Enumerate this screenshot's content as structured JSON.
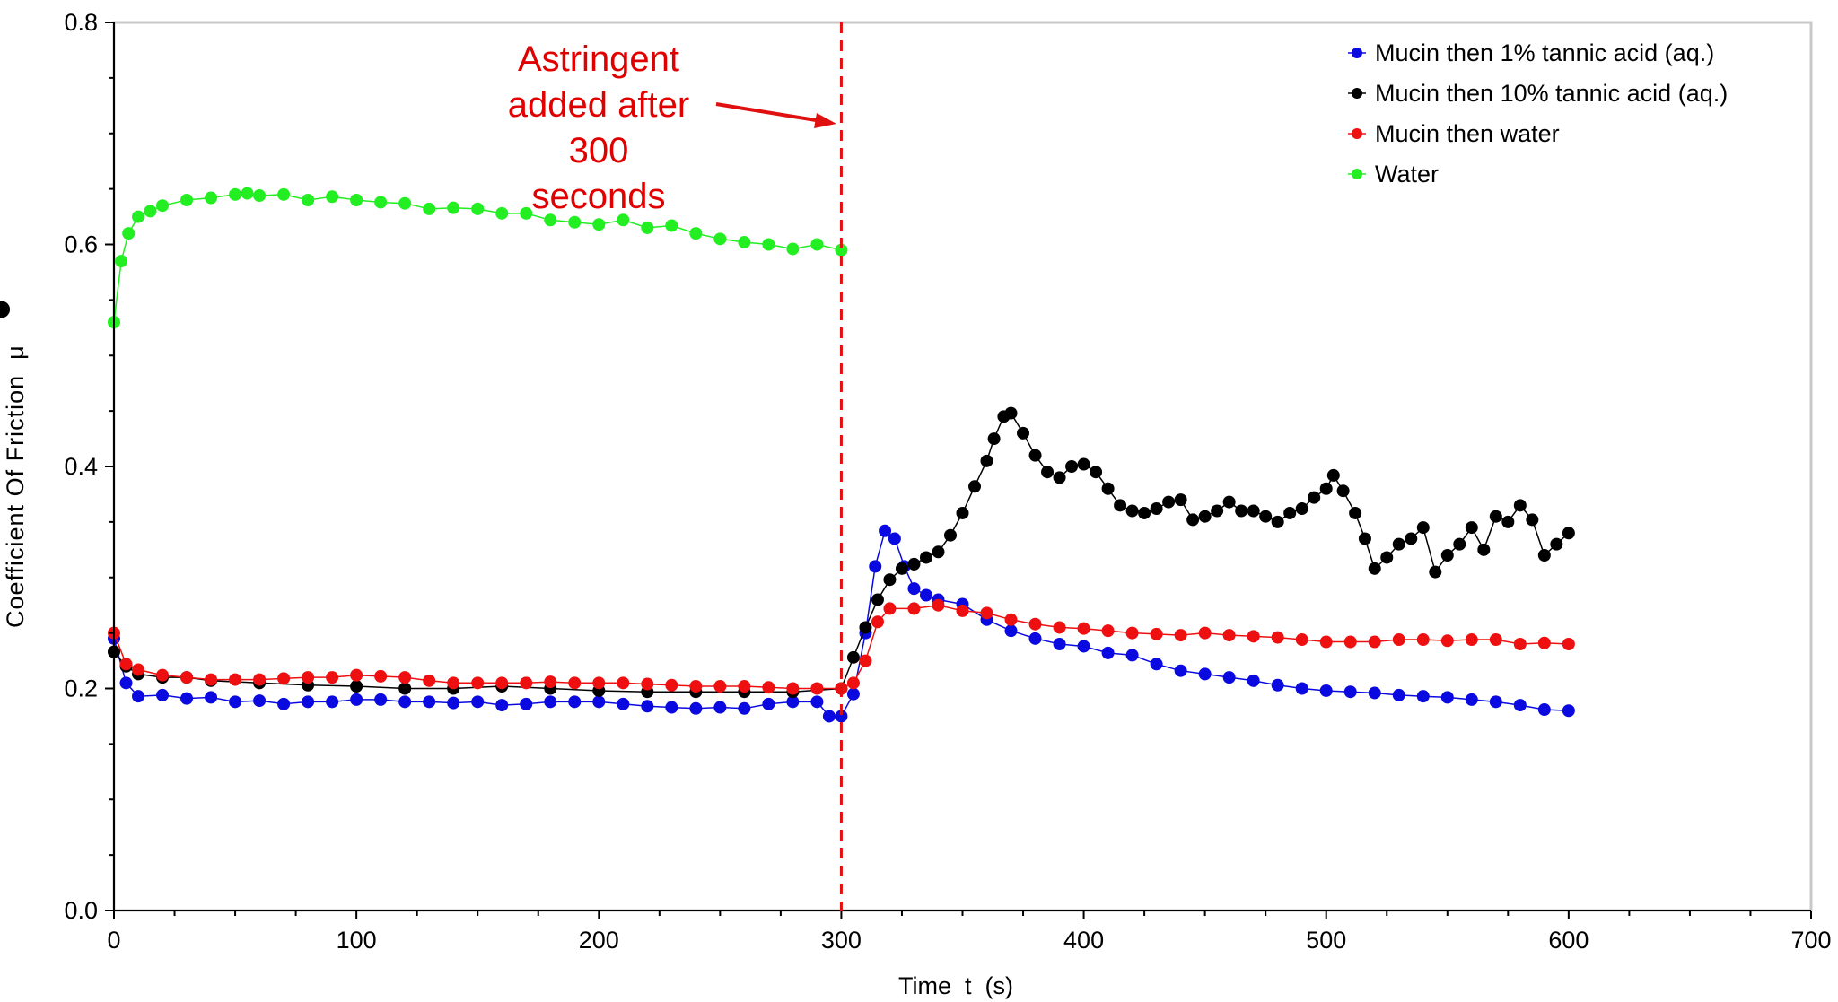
{
  "chart_data": {
    "type": "line",
    "title": "",
    "xlabel": "Time  t  (s)",
    "ylabel": "Coefficient Of Friction  μ",
    "ylabel_symbol": "●",
    "xlim": [
      0,
      700
    ],
    "ylim": [
      0,
      0.8
    ],
    "xticks": [
      0,
      100,
      200,
      300,
      400,
      500,
      600,
      700
    ],
    "yticks": [
      "0.0",
      "0.2",
      "0.4",
      "0.6",
      "0.8"
    ],
    "grid": false,
    "legend_position": "top-right",
    "annotation": {
      "lines": [
        "Astringent",
        "added after",
        "300",
        "seconds"
      ],
      "x": 300,
      "color": "#e01010"
    },
    "series": [
      {
        "name": "Mucin then 1% tannic acid (aq.)",
        "color": "#0a0ae0",
        "x": [
          0,
          5,
          10,
          20,
          30,
          40,
          50,
          60,
          70,
          80,
          90,
          100,
          110,
          120,
          130,
          140,
          150,
          160,
          170,
          180,
          190,
          200,
          210,
          220,
          230,
          240,
          250,
          260,
          270,
          280,
          290,
          295,
          300,
          305,
          310,
          314,
          318,
          322,
          326,
          330,
          335,
          340,
          350,
          360,
          370,
          380,
          390,
          400,
          410,
          420,
          430,
          440,
          450,
          460,
          470,
          480,
          490,
          500,
          510,
          520,
          530,
          540,
          550,
          560,
          570,
          580,
          590,
          600
        ],
        "y": [
          0.245,
          0.205,
          0.193,
          0.194,
          0.191,
          0.192,
          0.188,
          0.189,
          0.186,
          0.188,
          0.188,
          0.19,
          0.19,
          0.188,
          0.188,
          0.187,
          0.188,
          0.185,
          0.186,
          0.188,
          0.188,
          0.188,
          0.186,
          0.184,
          0.183,
          0.182,
          0.183,
          0.182,
          0.186,
          0.188,
          0.188,
          0.175,
          0.175,
          0.195,
          0.25,
          0.31,
          0.342,
          0.335,
          0.31,
          0.29,
          0.284,
          0.28,
          0.276,
          0.262,
          0.252,
          0.245,
          0.24,
          0.238,
          0.232,
          0.23,
          0.222,
          0.216,
          0.213,
          0.21,
          0.207,
          0.203,
          0.2,
          0.198,
          0.197,
          0.196,
          0.194,
          0.193,
          0.192,
          0.19,
          0.188,
          0.185,
          0.181,
          0.18
        ]
      },
      {
        "name": "Mucin then 10% tannic acid (aq.)",
        "color": "#000000",
        "x": [
          0,
          5,
          10,
          20,
          30,
          40,
          60,
          80,
          100,
          120,
          140,
          160,
          180,
          200,
          220,
          240,
          260,
          280,
          300,
          305,
          310,
          315,
          320,
          325,
          330,
          335,
          340,
          345,
          350,
          355,
          360,
          363,
          367,
          370,
          375,
          380,
          385,
          390,
          395,
          400,
          405,
          410,
          415,
          420,
          425,
          430,
          435,
          440,
          445,
          450,
          455,
          460,
          465,
          470,
          475,
          480,
          485,
          490,
          495,
          500,
          503,
          507,
          512,
          516,
          520,
          525,
          530,
          535,
          540,
          545,
          550,
          555,
          560,
          565,
          570,
          575,
          580,
          585,
          590,
          595,
          600
        ],
        "y": [
          0.233,
          0.22,
          0.213,
          0.21,
          0.21,
          0.207,
          0.205,
          0.203,
          0.202,
          0.2,
          0.2,
          0.202,
          0.2,
          0.198,
          0.197,
          0.197,
          0.197,
          0.197,
          0.2,
          0.228,
          0.255,
          0.28,
          0.298,
          0.308,
          0.312,
          0.318,
          0.323,
          0.338,
          0.358,
          0.382,
          0.405,
          0.425,
          0.445,
          0.448,
          0.43,
          0.41,
          0.395,
          0.39,
          0.4,
          0.402,
          0.395,
          0.38,
          0.365,
          0.36,
          0.358,
          0.362,
          0.368,
          0.37,
          0.352,
          0.355,
          0.36,
          0.368,
          0.36,
          0.36,
          0.355,
          0.35,
          0.358,
          0.362,
          0.372,
          0.38,
          0.392,
          0.378,
          0.358,
          0.335,
          0.308,
          0.318,
          0.33,
          0.335,
          0.345,
          0.305,
          0.32,
          0.33,
          0.345,
          0.325,
          0.355,
          0.35,
          0.365,
          0.352,
          0.32,
          0.33,
          0.34
        ]
      },
      {
        "name": "Mucin then water",
        "color": "#ee1010",
        "x": [
          0,
          5,
          10,
          20,
          30,
          40,
          50,
          60,
          70,
          80,
          90,
          100,
          110,
          120,
          130,
          140,
          150,
          160,
          170,
          180,
          190,
          200,
          210,
          220,
          230,
          240,
          250,
          260,
          270,
          280,
          290,
          300,
          305,
          310,
          315,
          320,
          330,
          340,
          350,
          360,
          370,
          380,
          390,
          400,
          410,
          420,
          430,
          440,
          450,
          460,
          470,
          480,
          490,
          500,
          510,
          520,
          530,
          540,
          550,
          560,
          570,
          580,
          590,
          600
        ],
        "y": [
          0.25,
          0.222,
          0.217,
          0.212,
          0.21,
          0.208,
          0.208,
          0.208,
          0.209,
          0.21,
          0.21,
          0.212,
          0.211,
          0.21,
          0.207,
          0.205,
          0.205,
          0.205,
          0.205,
          0.206,
          0.205,
          0.205,
          0.205,
          0.204,
          0.203,
          0.202,
          0.202,
          0.202,
          0.201,
          0.2,
          0.2,
          0.2,
          0.205,
          0.225,
          0.26,
          0.272,
          0.272,
          0.275,
          0.27,
          0.268,
          0.262,
          0.258,
          0.255,
          0.254,
          0.252,
          0.25,
          0.249,
          0.248,
          0.25,
          0.248,
          0.247,
          0.246,
          0.244,
          0.242,
          0.242,
          0.242,
          0.244,
          0.244,
          0.243,
          0.244,
          0.244,
          0.24,
          0.241,
          0.24
        ]
      },
      {
        "name": "Water",
        "color": "#22ee22",
        "x": [
          0,
          3,
          6,
          10,
          15,
          20,
          30,
          40,
          50,
          55,
          60,
          70,
          80,
          90,
          100,
          110,
          120,
          130,
          140,
          150,
          160,
          170,
          180,
          190,
          200,
          210,
          220,
          230,
          240,
          250,
          260,
          270,
          280,
          290,
          300
        ],
        "y": [
          0.53,
          0.585,
          0.61,
          0.625,
          0.63,
          0.635,
          0.64,
          0.642,
          0.645,
          0.646,
          0.644,
          0.645,
          0.64,
          0.643,
          0.64,
          0.638,
          0.637,
          0.632,
          0.633,
          0.632,
          0.628,
          0.628,
          0.622,
          0.62,
          0.618,
          0.622,
          0.615,
          0.617,
          0.61,
          0.605,
          0.602,
          0.6,
          0.596,
          0.6,
          0.595
        ]
      }
    ]
  }
}
